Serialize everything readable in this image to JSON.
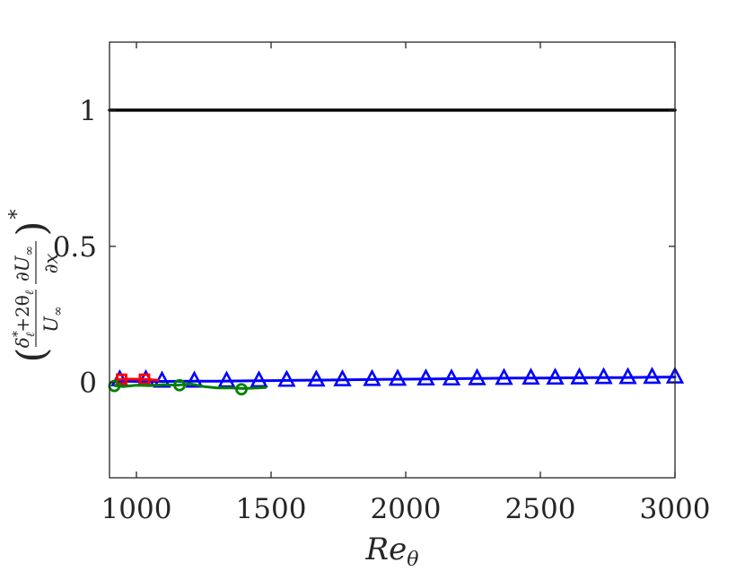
{
  "chart_data": {
    "type": "line",
    "xlabel": "Re",
    "xlabel_sub": "θ",
    "ylabel": {
      "lparen": "(",
      "num1": "δ",
      "num1_sup": "*",
      "num1_sub": "ℓ",
      "num_mid": "+2θ",
      "num_mid_sub": "ℓ",
      "den1": "U",
      "den1_sub": "∞",
      "num2": "∂U",
      "num2_sub": "∞",
      "den2": "∂x",
      "rparen": ")",
      "sup": "*"
    },
    "xlim": [
      900,
      3000
    ],
    "ylim": [
      -0.35,
      1.25
    ],
    "xticks": [
      1000,
      1500,
      2000,
      2500,
      3000
    ],
    "yticks": [
      0,
      0.5,
      1
    ],
    "xtick_labels": [
      "1000",
      "1500",
      "2000",
      "2500",
      "3000"
    ],
    "ytick_labels": [
      "0",
      "0.5",
      "1"
    ],
    "grid": false,
    "series": [
      {
        "color": "#000000",
        "marker": "none",
        "x": [
          900,
          3000
        ],
        "y": [
          1,
          1
        ]
      },
      {
        "color": "#0000ff",
        "marker": "triangle",
        "x": [
          930,
          1000,
          1100,
          1200,
          1300,
          1400,
          1500,
          1600,
          1700,
          1800,
          1900,
          2000,
          2100,
          2200,
          2300,
          2400,
          2500,
          2600,
          2700,
          2800,
          2900,
          3000
        ],
        "y": [
          0.005,
          0.004,
          0.004,
          0.005,
          0.005,
          0.006,
          0.007,
          0.008,
          0.009,
          0.01,
          0.011,
          0.012,
          0.013,
          0.014,
          0.015,
          0.016,
          0.016,
          0.017,
          0.018,
          0.018,
          0.019,
          0.02
        ],
        "marker_x": [
          938,
          1035,
          1095,
          1215,
          1335,
          1455,
          1558,
          1668,
          1765,
          1875,
          1970,
          2075,
          2170,
          2265,
          2365,
          2465,
          2555,
          2645,
          2735,
          2825,
          2915,
          3000
        ],
        "marker_y": [
          0.01,
          0.01,
          0.005,
          0.005,
          0.005,
          0.006,
          0.008,
          0.009,
          0.01,
          0.011,
          0.012,
          0.013,
          0.013,
          0.014,
          0.015,
          0.016,
          0.016,
          0.017,
          0.018,
          0.018,
          0.019,
          0.02
        ]
      },
      {
        "color": "#ff0000",
        "marker": "square",
        "x": [
          925,
          960,
          1000,
          1040,
          1080
        ],
        "y": [
          0.01,
          0.012,
          0.012,
          0.011,
          0.008
        ],
        "marker_x": [
          945,
          1030
        ],
        "marker_y": [
          0.012,
          0.012
        ]
      },
      {
        "color": "#008000",
        "marker": "circle",
        "x": [
          920,
          950,
          1000,
          1050,
          1100,
          1150,
          1200,
          1250,
          1300,
          1350,
          1400,
          1450,
          1480
        ],
        "y": [
          -0.012,
          -0.015,
          -0.01,
          -0.012,
          -0.008,
          -0.01,
          -0.005,
          -0.015,
          -0.02,
          -0.02,
          -0.022,
          -0.02,
          -0.018
        ],
        "marker_x": [
          918,
          1160,
          1390
        ],
        "marker_y": [
          -0.013,
          -0.01,
          -0.025
        ]
      }
    ]
  }
}
